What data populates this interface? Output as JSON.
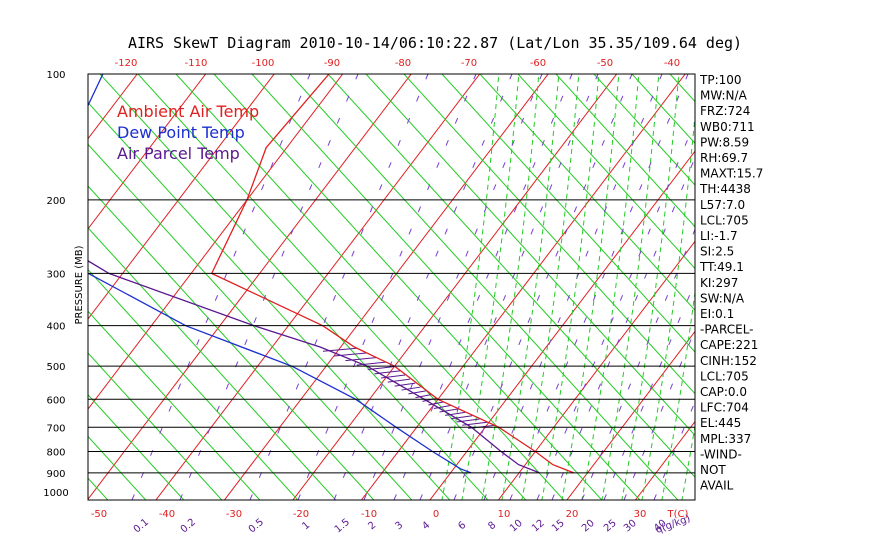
{
  "chart_data": {
    "type": "skew-t",
    "title": "AIRS SkewT Diagram 2010-10-14/06:10:22.87 (Lat/Lon 35.35/109.64 deg)",
    "ylabel": "PRESSURE (MB)",
    "xlabel_bottom": "T(C)",
    "mixing_ratio_unit": "q(g/kg)",
    "pressure_levels": [
      100,
      200,
      300,
      400,
      500,
      600,
      700,
      800,
      900,
      1000
    ],
    "top_temp_ticks": [
      -120,
      -110,
      -100,
      -90,
      -80,
      -70,
      -60,
      -50,
      -40
    ],
    "bottom_temp_ticks": [
      -50,
      -40,
      -30,
      -20,
      -10,
      0,
      10,
      20,
      30
    ],
    "mixing_ratio_labels": [
      "0.1",
      "0.2",
      "0.5",
      "1",
      "1.5",
      "2",
      "3",
      "4",
      "6",
      "8",
      "10",
      "12",
      "15",
      "20",
      "25",
      "30",
      "40"
    ],
    "legend": [
      {
        "label": "Ambient Air Temp",
        "color": "#e02020"
      },
      {
        "label": "Dew Point Temp",
        "color": "#1c2fd0"
      },
      {
        "label": "Air Parcel Temp",
        "color": "#5a1890"
      }
    ],
    "series": [
      {
        "name": "Ambient Air Temp",
        "color": "#e02020",
        "points": [
          [
            100,
            -62
          ],
          [
            150,
            -63
          ],
          [
            200,
            -60
          ],
          [
            300,
            -57
          ],
          [
            400,
            -35
          ],
          [
            450,
            -28
          ],
          [
            500,
            -20
          ],
          [
            600,
            -10
          ],
          [
            700,
            2
          ],
          [
            800,
            10
          ],
          [
            860,
            14
          ],
          [
            900,
            18
          ]
        ]
      },
      {
        "name": "Dew Point Temp",
        "color": "#1c2fd0",
        "points": [
          [
            100,
            -95
          ],
          [
            130,
            -93
          ],
          [
            150,
            -94
          ],
          [
            200,
            -94
          ],
          [
            250,
            -86
          ],
          [
            300,
            -75
          ],
          [
            400,
            -55
          ],
          [
            500,
            -35
          ],
          [
            600,
            -22
          ],
          [
            700,
            -13
          ],
          [
            800,
            -5
          ],
          [
            880,
            1
          ],
          [
            900,
            3
          ]
        ]
      },
      {
        "name": "Air Parcel Temp",
        "color": "#5a1890",
        "points": [
          [
            100,
            -129
          ],
          [
            150,
            -110
          ],
          [
            200,
            -98
          ],
          [
            300,
            -72
          ],
          [
            400,
            -45
          ],
          [
            450,
            -33
          ],
          [
            500,
            -24
          ],
          [
            600,
            -12
          ],
          [
            700,
            -2
          ],
          [
            800,
            5
          ],
          [
            860,
            9
          ],
          [
            900,
            13
          ]
        ]
      }
    ],
    "cape_region_pressure": [
      445,
      704
    ],
    "parameters": [
      "TP:100",
      "MW:N/A",
      "FRZ:724",
      "WB0:711",
      "PW:8.59",
      "RH:69.7",
      "MAXT:15.7",
      "TH:4438",
      "L57:7.0",
      "LCL:705",
      "LI:-1.7",
      "SI:2.5",
      "TT:49.1",
      "KI:297",
      "SW:N/A",
      "EI:0.1",
      "-PARCEL-",
      "CAPE:221",
      "CINH:152",
      "LCL:705",
      "CAP:0.0",
      "LFC:704",
      "EL:445",
      "MPL:337",
      "-WIND-",
      "NOT",
      "AVAIL"
    ]
  }
}
